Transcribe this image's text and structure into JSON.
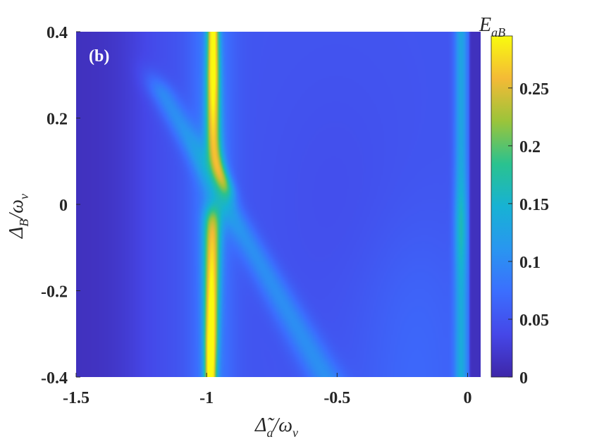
{
  "chart_data": {
    "type": "heatmap",
    "panel_label": "(b)",
    "colorbar_label": {
      "main": "E",
      "sub": "aB"
    },
    "xlabel": {
      "main": "Δ̃",
      "sub": "a",
      "rest": "/ω",
      "sub2": "ν"
    },
    "ylabel": {
      "main": "Δ",
      "sub": "B",
      "rest": "/ω",
      "sub2": "ν"
    },
    "xlim": [
      -1.5,
      0.05
    ],
    "ylim": [
      -0.4,
      0.4
    ],
    "clim": [
      0,
      0.295
    ],
    "colormap": "parula",
    "x_ticks": [
      {
        "value": -1.5,
        "label": "-1.5"
      },
      {
        "value": -1,
        "label": "-1"
      },
      {
        "value": -0.5,
        "label": "-0.5"
      },
      {
        "value": 0,
        "label": "0"
      }
    ],
    "y_ticks": [
      {
        "value": 0.4,
        "label": "0.4"
      },
      {
        "value": 0.2,
        "label": "0.2"
      },
      {
        "value": 0,
        "label": "0"
      },
      {
        "value": -0.2,
        "label": "-0.2"
      },
      {
        "value": -0.4,
        "label": "-0.4"
      }
    ],
    "colorbar_ticks": [
      {
        "value": 0.25,
        "label": "0.25"
      },
      {
        "value": 0.2,
        "label": "0.2"
      },
      {
        "value": 0.15,
        "label": "0.15"
      },
      {
        "value": 0.1,
        "label": "0.1"
      },
      {
        "value": 0.05,
        "label": "0.05"
      },
      {
        "value": 0,
        "label": "0"
      }
    ],
    "features": [
      {
        "name": "resonance band",
        "x": -0.98,
        "y_range": [
          -0.4,
          -0.01
        ],
        "peak": 0.29
      },
      {
        "name": "resonance band",
        "x": -0.97,
        "y_range": [
          0.03,
          0.4
        ],
        "peak": 0.27
      },
      {
        "name": "diagonal ridge",
        "from": [
          -1.1,
          0.05
        ],
        "to": [
          -0.55,
          -0.4
        ],
        "peak": 0.07
      },
      {
        "name": "edge band",
        "x": -0.02,
        "y_range": [
          -0.4,
          0.4
        ],
        "peak": 0.18
      }
    ]
  }
}
